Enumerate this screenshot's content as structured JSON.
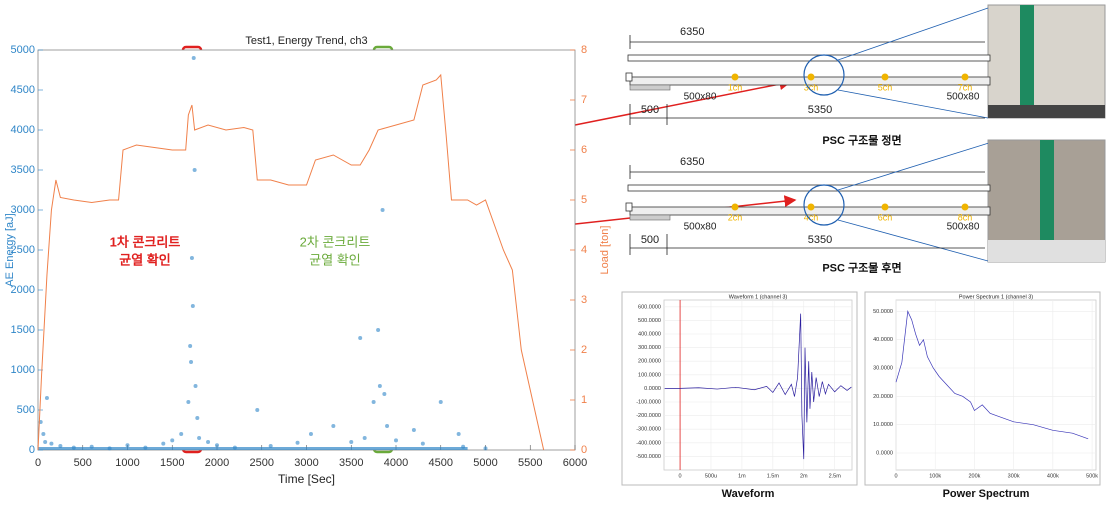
{
  "chart_data": [
    {
      "type": "scatter",
      "title": "Test1, Energy Trend, ch3",
      "xlabel": "Time [Sec]",
      "ylabel": "AE Energy [aJ]",
      "y2label": "Load [ton]",
      "xlim": [
        0,
        6000
      ],
      "xticks": [
        0,
        500,
        1000,
        1500,
        2000,
        2500,
        3000,
        3500,
        4000,
        4500,
        5000,
        5500,
        6000
      ],
      "ylim": [
        0,
        5000
      ],
      "yticks": [
        0,
        500,
        1000,
        1500,
        2000,
        2500,
        3000,
        3500,
        4000,
        4500,
        5000
      ],
      "y2lim": [
        0,
        8
      ],
      "y2ticks": [
        0,
        1,
        2,
        3,
        4,
        5,
        6,
        7,
        8
      ],
      "series": [
        {
          "color": "#2f86c8",
          "x": [
            30,
            60,
            80,
            100,
            150,
            250,
            400,
            600,
            800,
            1000,
            1200,
            1400,
            1500,
            1600,
            1680,
            1700,
            1710,
            1720,
            1730,
            1740,
            1750,
            1760,
            1780,
            1800,
            1900,
            2000,
            2200,
            2450,
            2600,
            2900,
            3050,
            3300,
            3500,
            3600,
            3650,
            3750,
            3800,
            3820,
            3850,
            3870,
            3900,
            4000,
            4200,
            4300,
            4500,
            4700,
            4750,
            5000
          ],
          "values": [
            350,
            200,
            100,
            650,
            80,
            50,
            30,
            40,
            20,
            60,
            30,
            80,
            120,
            200,
            600,
            1300,
            1100,
            2400,
            1800,
            4900,
            3500,
            800,
            400,
            150,
            100,
            60,
            30,
            500,
            50,
            90,
            200,
            300,
            100,
            1400,
            150,
            600,
            1500,
            800,
            3000,
            700,
            300,
            120,
            250,
            80,
            600,
            200,
            40,
            20
          ]
        },
        {
          "type": "line",
          "axis": "y2",
          "color": "#f0804a",
          "x": [
            0,
            40,
            100,
            150,
            200,
            250,
            400,
            600,
            800,
            900,
            950,
            1100,
            1300,
            1500,
            1650,
            1680,
            1720,
            1750,
            1900,
            2100,
            2300,
            2400,
            2450,
            2600,
            2800,
            3000,
            3100,
            3300,
            3500,
            3600,
            3700,
            3800,
            4000,
            4200,
            4300,
            4450,
            4500,
            4560,
            4620,
            4800,
            4900,
            5000,
            5100,
            5200,
            5300,
            5400,
            5550,
            5650
          ],
          "values": [
            0,
            1.5,
            3.5,
            4.8,
            5.4,
            5.05,
            5.0,
            4.95,
            5.0,
            5.0,
            6.0,
            6.1,
            6.05,
            6.0,
            6.0,
            6.7,
            6.9,
            6.4,
            6.5,
            6.4,
            6.45,
            6.4,
            5.4,
            5.4,
            5.3,
            5.3,
            5.8,
            5.9,
            5.7,
            5.7,
            6.0,
            6.4,
            6.5,
            6.6,
            7.3,
            7.4,
            7.5,
            6.3,
            5.0,
            5.0,
            4.9,
            5.0,
            4.5,
            4.0,
            3.6,
            2.0,
            0.8,
            0
          ]
        }
      ],
      "annotations": [
        {
          "lines": [
            "1차 콘크리트",
            "균열 확인"
          ],
          "color": "#e0201f"
        },
        {
          "lines": [
            "2차 콘크리트",
            "균열 확인"
          ],
          "color": "#6aaa3a"
        }
      ]
    },
    {
      "type": "line",
      "title": "Waveform 1 (channel 3)",
      "caption": "Waveform",
      "xlim": [
        -0.00026,
        0.00278
      ],
      "xticks": [
        0,
        {
          "value": 0.0005,
          "label": "500u"
        },
        {
          "value": 0.001,
          "label": "1m"
        },
        {
          "value": 0.0015,
          "label": "1.5m"
        },
        {
          "value": 0.002,
          "label": "2m"
        },
        {
          "value": 0.0025,
          "label": "2.5m"
        }
      ],
      "ylim": [
        -600,
        650
      ],
      "yticks": [
        {
          "value": 600,
          "label": "600.0000"
        },
        {
          "value": 500,
          "label": "500.0000"
        },
        {
          "value": 400,
          "label": "400.0000"
        },
        {
          "value": 300,
          "label": "300.0000"
        },
        {
          "value": 200,
          "label": "200.0000"
        },
        {
          "value": 100,
          "label": "100.0000"
        },
        {
          "value": 0,
          "label": "0.0000"
        },
        {
          "value": -100,
          "label": "-100.0000"
        },
        {
          "value": -200,
          "label": "-200.0000"
        },
        {
          "value": -300,
          "label": "-300.0000"
        },
        {
          "value": -400,
          "label": "-400.0000"
        },
        {
          "value": -500,
          "label": "-500.0000"
        }
      ],
      "series": [
        {
          "color": "#2a1d9e",
          "x": [
            -0.00025,
            0,
            0.0003,
            0.0006,
            0.0009,
            0.0012,
            0.0014,
            0.0015,
            0.0016,
            0.0017,
            0.0018,
            0.00185,
            0.0019,
            0.00195,
            0.00197,
            0.002,
            0.00202,
            0.00205,
            0.00208,
            0.0021,
            0.00213,
            0.00216,
            0.0022,
            0.00225,
            0.0023,
            0.00235,
            0.0024,
            0.0025,
            0.0026,
            0.0027,
            0.00277
          ],
          "values": [
            0,
            0,
            5,
            -5,
            8,
            -10,
            15,
            -30,
            40,
            -45,
            30,
            -60,
            80,
            550,
            -200,
            -520,
            300,
            -250,
            200,
            -150,
            120,
            -100,
            80,
            -60,
            50,
            -40,
            30,
            -25,
            20,
            -15,
            10
          ]
        }
      ]
    },
    {
      "type": "line",
      "title": "Power Spectrum 1 (channel 3)",
      "caption": "Power Spectrum",
      "xlim": [
        0,
        510000
      ],
      "xticks": [
        0,
        {
          "value": 100000,
          "label": "100k"
        },
        {
          "value": 200000,
          "label": "200k"
        },
        {
          "value": 300000,
          "label": "300k"
        },
        {
          "value": 400000,
          "label": "400k"
        },
        {
          "value": 500000,
          "label": "500k"
        }
      ],
      "ylim": [
        -6,
        54
      ],
      "yticks": [
        {
          "value": 50,
          "label": "50.0000"
        },
        {
          "value": 40,
          "label": "40.0000"
        },
        {
          "value": 30,
          "label": "30.0000"
        },
        {
          "value": 20,
          "label": "20.0000"
        },
        {
          "value": 10,
          "label": "10.0000"
        },
        {
          "value": 0,
          "label": "0.0000"
        }
      ],
      "series": [
        {
          "color": "#3a36b8",
          "x": [
            0,
            15000,
            30000,
            40000,
            50000,
            60000,
            70000,
            80000,
            95000,
            110000,
            130000,
            150000,
            170000,
            190000,
            200000,
            220000,
            240000,
            260000,
            300000,
            350000,
            400000,
            450000,
            490000
          ],
          "values": [
            25,
            32,
            50,
            47,
            42,
            38,
            40,
            34,
            30,
            27,
            24,
            21,
            20,
            18,
            15,
            17,
            14,
            13,
            11,
            10,
            8,
            7,
            5
          ]
        }
      ]
    }
  ],
  "diagrams": [
    {
      "caption": "PSC 구조물 정면",
      "total": "6350",
      "left": "500",
      "span": "5350",
      "sections": [
        "500x80",
        "500x80"
      ],
      "channels": [
        "1ch",
        "3ch",
        "5ch",
        "7ch"
      ]
    },
    {
      "caption": "PSC 구조물 후면",
      "total": "6350",
      "left": "500",
      "span": "5350",
      "sections": [
        "500x80",
        "500x80"
      ],
      "channels": [
        "2ch",
        "4ch",
        "6ch",
        "8ch"
      ]
    }
  ]
}
